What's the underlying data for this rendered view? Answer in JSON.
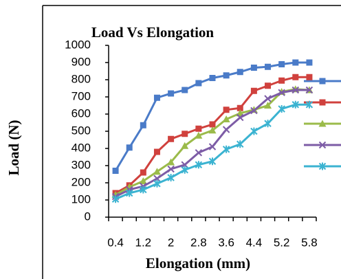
{
  "chart_data": {
    "type": "line",
    "title": "Load Vs Elongation",
    "xlabel": "Elongation (mm)",
    "ylabel": "Load (N)",
    "categories": [
      "0.4",
      null,
      "1.2",
      null,
      "2",
      null,
      "2.8",
      null,
      "3.6",
      null,
      "4.4",
      null,
      "5.2",
      null,
      "5.8"
    ],
    "ylim": [
      0,
      1000
    ],
    "yticks": [
      0,
      100,
      200,
      300,
      400,
      500,
      600,
      700,
      800,
      900,
      1000
    ],
    "series": [
      {
        "color": "#4a7bc8",
        "marker": "square",
        "values": [
          270,
          405,
          535,
          695,
          720,
          740,
          780,
          810,
          825,
          845,
          870,
          875,
          890,
          900,
          900
        ]
      },
      {
        "color": "#d0413d",
        "marker": "square",
        "values": [
          140,
          185,
          260,
          380,
          455,
          485,
          515,
          540,
          625,
          635,
          735,
          765,
          795,
          815,
          815
        ]
      },
      {
        "color": "#9bbb4a",
        "marker": "triangle",
        "values": [
          130,
          175,
          210,
          265,
          320,
          415,
          475,
          505,
          570,
          605,
          625,
          650,
          730,
          745,
          740
        ]
      },
      {
        "color": "#7d5ca6",
        "marker": "x",
        "values": [
          120,
          160,
          180,
          225,
          280,
          305,
          375,
          410,
          510,
          580,
          620,
          690,
          725,
          740,
          740
        ]
      },
      {
        "color": "#3bb3d1",
        "marker": "star",
        "values": [
          105,
          140,
          160,
          195,
          230,
          275,
          305,
          325,
          395,
          425,
          500,
          545,
          630,
          655,
          655
        ]
      }
    ]
  }
}
